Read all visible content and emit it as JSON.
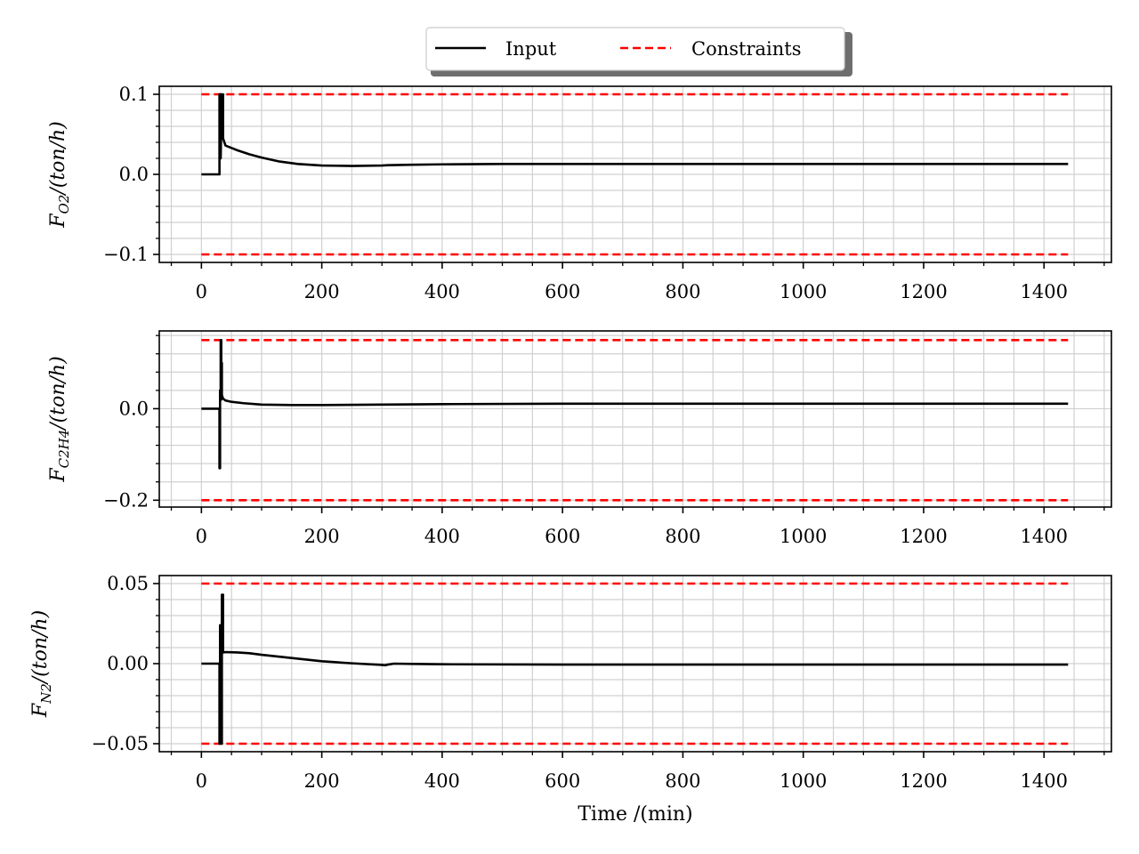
{
  "legend": {
    "entries": [
      {
        "label": "Input",
        "color": "#000000",
        "style": "solid"
      },
      {
        "label": "Constraints",
        "color": "#ff0000",
        "style": "dashed"
      }
    ]
  },
  "chart_data": [
    {
      "type": "line",
      "ylabel_base": "F",
      "ylabel_sub": "O2",
      "ylabel_rest": "/(ton/h)",
      "xlim": [
        -70,
        1512
      ],
      "ylim": [
        -0.11,
        0.11
      ],
      "xticks": [
        0,
        200,
        400,
        600,
        800,
        1000,
        1200,
        1400
      ],
      "xtick_labels": [
        "0",
        "200",
        "400",
        "600",
        "800",
        "1000",
        "1200",
        "1400"
      ],
      "yticks": [
        -0.1,
        0.0,
        0.1
      ],
      "ytick_labels": [
        "−0.1",
        "0.0",
        "0.1"
      ],
      "constraints": {
        "upper": 0.1,
        "lower": -0.1,
        "x": [
          0,
          1440
        ]
      },
      "series": [
        {
          "x": [
            0,
            30,
            30,
            32,
            32,
            34,
            34,
            36,
            36,
            40,
            50,
            60,
            80,
            100,
            130,
            160,
            200,
            250,
            300,
            310,
            350,
            400,
            500,
            600,
            800,
            1000,
            1200,
            1440
          ],
          "y": [
            0,
            0,
            0.1,
            0.1,
            0.02,
            0.1,
            0.06,
            0.1,
            0.045,
            0.036,
            0.033,
            0.03,
            0.025,
            0.021,
            0.016,
            0.013,
            0.011,
            0.0105,
            0.011,
            0.0115,
            0.012,
            0.0125,
            0.013,
            0.013,
            0.013,
            0.013,
            0.013,
            0.013
          ]
        }
      ]
    },
    {
      "type": "line",
      "ylabel_base": "F",
      "ylabel_sub": "C2H4",
      "ylabel_rest": "/(ton/h)",
      "xlim": [
        -70,
        1512
      ],
      "ylim": [
        -0.215,
        0.17
      ],
      "xticks": [
        0,
        200,
        400,
        600,
        800,
        1000,
        1200,
        1400
      ],
      "xtick_labels": [
        "0",
        "200",
        "400",
        "600",
        "800",
        "1000",
        "1200",
        "1400"
      ],
      "yticks": [
        -0.2,
        0.0
      ],
      "ytick_labels": [
        "−0.2",
        "0.0"
      ],
      "constraints": {
        "upper": 0.15,
        "lower": -0.2,
        "x": [
          0,
          1440
        ]
      },
      "series": [
        {
          "x": [
            0,
            30,
            30,
            31,
            31,
            32,
            32,
            33,
            33,
            34,
            34,
            36,
            40,
            50,
            70,
            100,
            150,
            200,
            300,
            400,
            600,
            800,
            1000,
            1200,
            1440
          ],
          "y": [
            0,
            0,
            -0.13,
            -0.13,
            0.04,
            0.04,
            0.15,
            0.15,
            0.02,
            0.1,
            0.03,
            0.022,
            0.018,
            0.015,
            0.012,
            0.009,
            0.008,
            0.008,
            0.009,
            0.01,
            0.011,
            0.011,
            0.011,
            0.011,
            0.011
          ]
        }
      ]
    },
    {
      "type": "line",
      "ylabel_base": "F",
      "ylabel_sub": "N2",
      "ylabel_rest": "/(ton/h)",
      "xlim": [
        -70,
        1512
      ],
      "ylim": [
        -0.055,
        0.055
      ],
      "xticks": [
        0,
        200,
        400,
        600,
        800,
        1000,
        1200,
        1400
      ],
      "xtick_labels": [
        "0",
        "200",
        "400",
        "600",
        "800",
        "1000",
        "1200",
        "1400"
      ],
      "yticks": [
        -0.05,
        0.0,
        0.05
      ],
      "ytick_labels": [
        "−0.05",
        "0.00",
        "0.05"
      ],
      "constraints": {
        "upper": 0.05,
        "lower": -0.05,
        "x": [
          0,
          1440
        ]
      },
      "series": [
        {
          "x": [
            0,
            30,
            30,
            31,
            31,
            33,
            33,
            34,
            34,
            36,
            36,
            40,
            60,
            80,
            100,
            150,
            200,
            250,
            300,
            305,
            310,
            320,
            350,
            400,
            600,
            800,
            1000,
            1200,
            1440
          ],
          "y": [
            0,
            0,
            -0.05,
            -0.05,
            0.024,
            0.024,
            -0.05,
            -0.05,
            0.043,
            0.043,
            0.007,
            0.0072,
            0.007,
            0.0065,
            0.0055,
            0.0035,
            0.0015,
            0.0002,
            -0.0008,
            -0.001,
            -0.0006,
            0,
            -0.0002,
            -0.0004,
            -0.0006,
            -0.0006,
            -0.0006,
            -0.0006,
            -0.0006
          ]
        }
      ]
    }
  ],
  "xlabel": "Time /(min)"
}
